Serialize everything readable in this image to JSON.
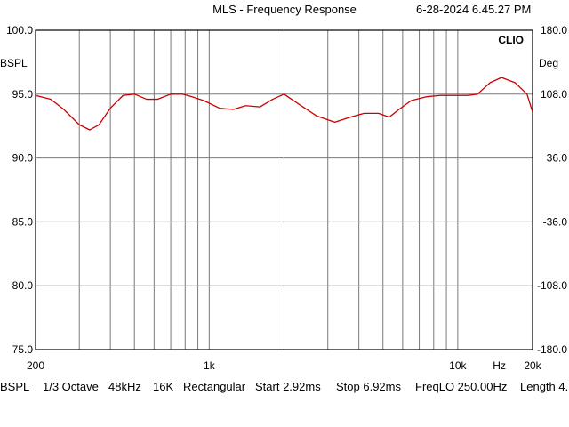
{
  "header": {
    "title": "MLS - Frequency Response",
    "timestamp": "6-28-2024 6.45.27 PM"
  },
  "chart_data": {
    "type": "line",
    "brand_label": "CLIO",
    "left_unit": "BSPL",
    "right_unit": "Deg",
    "xscale": "log",
    "xlim": [
      200,
      20000
    ],
    "ylim": [
      75,
      100
    ],
    "y2lim": [
      -180,
      180
    ],
    "y_ticks": [
      {
        "value": 100,
        "label": "100.0"
      },
      {
        "value": 95,
        "label": "95.0"
      },
      {
        "value": 90,
        "label": "90.0"
      },
      {
        "value": 85,
        "label": "85.0"
      },
      {
        "value": 80,
        "label": "80.0"
      },
      {
        "value": 75,
        "label": "75.0"
      }
    ],
    "y2_ticks": [
      {
        "value": 180,
        "label": "180.0"
      },
      {
        "value": 108,
        "label": "108.0"
      },
      {
        "value": 36,
        "label": "36.0"
      },
      {
        "value": -36,
        "label": "-36.0"
      },
      {
        "value": -108,
        "label": "-108.0"
      },
      {
        "value": -180,
        "label": "-180.0"
      }
    ],
    "x_ticks": [
      {
        "value": 200,
        "label": "200"
      },
      {
        "value": 1000,
        "label": "1k"
      },
      {
        "value": 10000,
        "label": "10k"
      },
      {
        "value": 20000,
        "label": "20k"
      }
    ],
    "x_unit": "Hz",
    "grid": true,
    "colors": {
      "series": "#cc0000",
      "grid": "#7a7a7a",
      "frame": "#000000"
    },
    "series": [
      {
        "x": [
          200,
          230,
          260,
          300,
          330,
          360,
          400,
          450,
          500,
          560,
          620,
          700,
          780,
          850,
          950,
          1100,
          1250,
          1400,
          1600,
          1800,
          2000,
          2300,
          2700,
          3200,
          3700,
          4200,
          4800,
          5300,
          5800,
          6500,
          7500,
          8500,
          10000,
          11000,
          12000,
          13500,
          15000,
          17000,
          19000,
          20000
        ],
        "y": [
          94.9,
          94.6,
          93.8,
          92.6,
          92.2,
          92.6,
          93.9,
          94.9,
          95.0,
          94.6,
          94.6,
          95.0,
          95.0,
          94.8,
          94.5,
          93.9,
          93.8,
          94.1,
          94.0,
          94.6,
          95.0,
          94.2,
          93.3,
          92.8,
          93.2,
          93.5,
          93.5,
          93.2,
          93.8,
          94.5,
          94.8,
          94.9,
          94.9,
          94.9,
          95.0,
          95.9,
          96.3,
          95.9,
          95.0,
          93.6
        ]
      }
    ]
  },
  "footer": {
    "unit": "BSPL",
    "smoothing": "1/3 Octave",
    "rate": "48kHz",
    "size": "16K",
    "window": "Rectangular",
    "start": "Start 2.92ms",
    "stop": "Stop 6.92ms",
    "freqlo": "FreqLO 250.00Hz",
    "length": "Length 4."
  }
}
